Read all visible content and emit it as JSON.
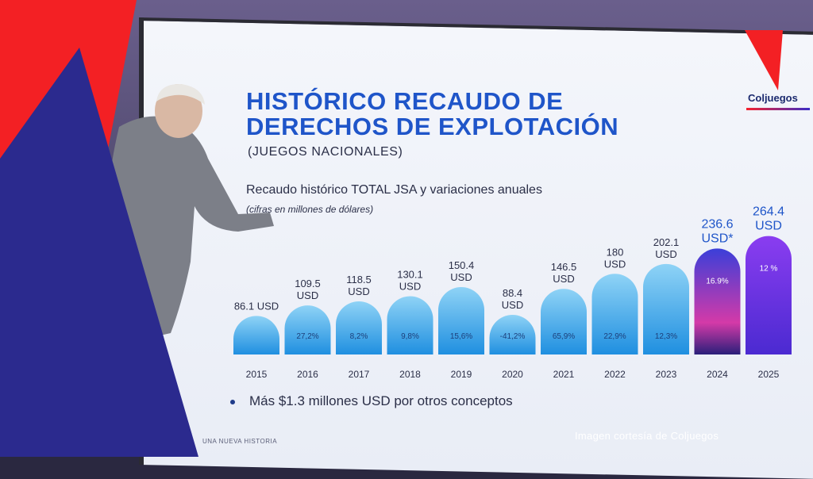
{
  "slide": {
    "title": "HISTÓRICO RECAUDO DE\nDERECHOS DE EXPLOTACIÓN",
    "subtitle": "(JUEGOS NACIONALES)",
    "logo": "Coljuegos",
    "bullet": "Más $1.3 millones USD por otros conceptos",
    "footer_tag": "UNA NUEVA HISTORIA"
  },
  "courtesy": "Imagen cortesía de Coljuegos",
  "chart_data": {
    "type": "bar",
    "title": "Recaudo histórico TOTAL JSA y variaciones anuales",
    "subtitle": "(cifras en millones de dólares)",
    "categories": [
      "2015",
      "2016",
      "2017",
      "2018",
      "2019",
      "2020",
      "2021",
      "2022",
      "2023",
      "2024",
      "2025"
    ],
    "values": [
      86.1,
      109.5,
      118.5,
      130.1,
      150.4,
      88.4,
      146.5,
      180,
      202.1,
      236.6,
      264.4
    ],
    "value_labels": [
      "86.1 USD",
      "109.5\nUSD",
      "118.5\nUSD",
      "130.1\nUSD",
      "150.4\nUSD",
      "88.4\nUSD",
      "146.5\nUSD",
      "180\nUSD",
      "202.1\nUSD",
      "236.6\nUSD*",
      "264.4\nUSD"
    ],
    "variation_labels": [
      "",
      "27,2%",
      "8,2%",
      "9,8%",
      "15,6%",
      "-41,2%",
      "65,9%",
      "22,9%",
      "12,3%",
      "16.9%",
      "12 %"
    ],
    "colors": {
      "bar_top": "#8fd3f6",
      "bar_bottom": "#1f8fe0",
      "bar_2024_top": "#3b3fd9",
      "bar_2024_bottom": "#d43aa8",
      "bar_2025_top": "#8a3df0",
      "bar_2025_bottom": "#4b2ad1",
      "accent": "#1f55c9"
    },
    "grid": false,
    "legend": "none"
  }
}
